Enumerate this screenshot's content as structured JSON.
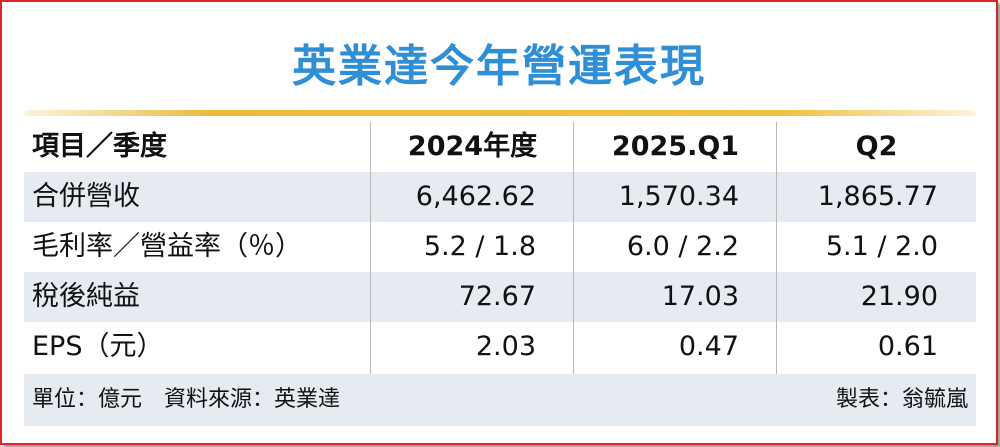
{
  "title": "英業達今年營運表現",
  "table": {
    "header": [
      "項目／季度",
      "2024年度",
      "2025.Q1",
      "Q2"
    ],
    "rows": [
      [
        "合併營收",
        "6,462.62",
        "1,570.34",
        "1,865.77"
      ],
      [
        "毛利率／營益率（％）",
        "5.2 / 1.8",
        "6.0 / 2.2",
        "5.1 / 2.0"
      ],
      [
        "稅後純益",
        "72.67",
        "17.03",
        "21.90"
      ],
      [
        "EPS（元）",
        "2.03",
        "0.47",
        "0.61"
      ]
    ]
  },
  "footer": {
    "source": "單位：億元　資料來源：英業達",
    "credit": "製表：翁毓嵐"
  }
}
